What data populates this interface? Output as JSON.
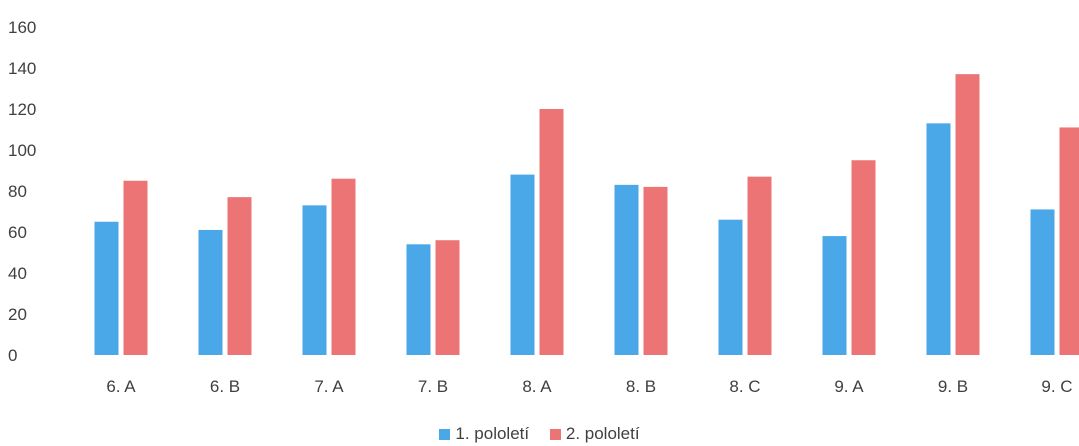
{
  "chart_data": {
    "type": "bar",
    "categories": [
      "6. A",
      "6. B",
      "7. A",
      "7. B",
      "8. A",
      "8. B",
      "8. C",
      "9. A",
      "9. B",
      "9. C"
    ],
    "series": [
      {
        "name": "1. pololetí",
        "color": "#4aa8e8",
        "values": [
          65,
          61,
          73,
          54,
          88,
          83,
          66,
          58,
          113,
          71
        ]
      },
      {
        "name": "2. pololetí",
        "color": "#ec7475",
        "values": [
          85,
          77,
          86,
          56,
          120,
          82,
          87,
          95,
          137,
          111
        ]
      }
    ],
    "title": "",
    "xlabel": "",
    "ylabel": "",
    "ylim": [
      0,
      160
    ],
    "yticks": [
      "0",
      "20",
      "40",
      "60",
      "80",
      "100",
      "120",
      "140",
      "160"
    ],
    "grid": false,
    "legend": "bottom"
  }
}
